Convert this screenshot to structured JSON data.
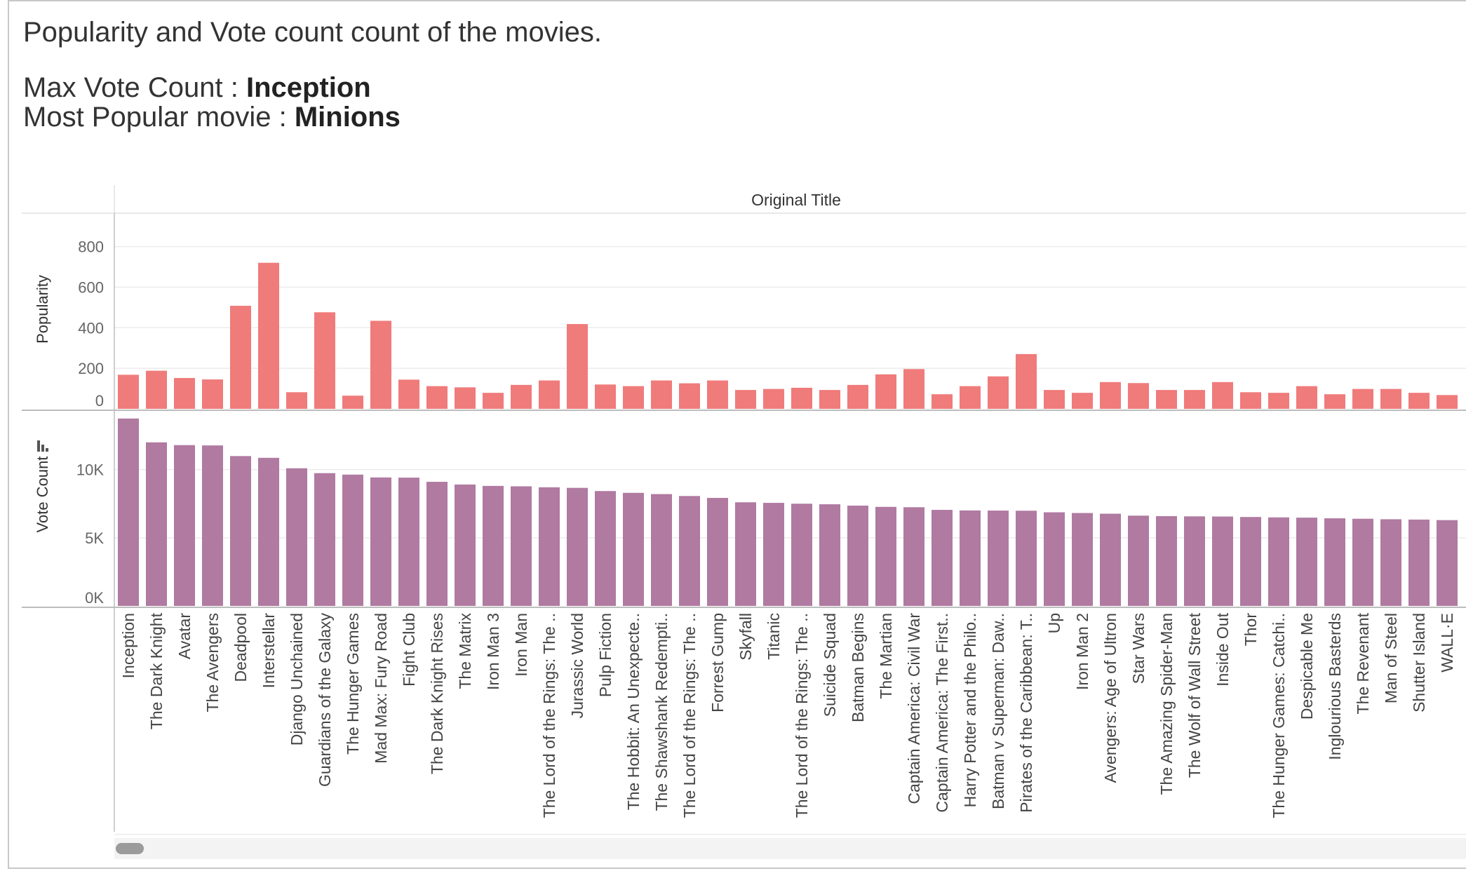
{
  "title": "Popularity and Vote count count of the movies.",
  "max_vote_label": "Max Vote Count : ",
  "max_vote_value": "Inception",
  "most_popular_label": "Most Popular movie : ",
  "most_popular_value": "Minions",
  "chart_data": {
    "type": "bar",
    "column_header": "Original Title",
    "categories": [
      "Inception",
      "The Dark Knight",
      "Avatar",
      "The Avengers",
      "Deadpool",
      "Interstellar",
      "Django Unchained",
      "Guardians of the Galaxy",
      "The Hunger Games",
      "Mad Max: Fury Road",
      "Fight Club",
      "The Dark Knight Rises",
      "The Matrix",
      "Iron Man 3",
      "Iron Man",
      "The Lord of the Rings: The ..",
      "Jurassic World",
      "Pulp Fiction",
      "The Hobbit: An Unexpecte..",
      "The Shawshank Redempti..",
      "The Lord of the Rings: The ..",
      "Forrest Gump",
      "Skyfall",
      "Titanic",
      "The Lord of the Rings: The ..",
      "Suicide Squad",
      "Batman Begins",
      "The Martian",
      "Captain America: Civil War",
      "Captain America: The First..",
      "Harry Potter and the Philo..",
      "Batman v Superman: Daw..",
      "Pirates of the Caribbean: T..",
      "Up",
      "Iron Man 2",
      "Avengers: Age of Ultron",
      "Star Wars",
      "The Amazing Spider-Man",
      "The Wolf of Wall Street",
      "Inside Out",
      "Thor",
      "The Hunger Games: Catchi..",
      "Despicable Me",
      "Inglourious Basterds",
      "The Revenant",
      "Man of Steel",
      "Shutter Island",
      "WALL·E"
    ],
    "panels": [
      {
        "ylabel": "Popularity",
        "color": "#f07b7b",
        "ylim": [
          0,
          840
        ],
        "ticks": [
          0,
          200,
          400,
          600,
          800
        ],
        "tick_labels": [
          "0",
          "200",
          "400",
          "600",
          "800"
        ],
        "values": [
          168,
          188,
          152,
          145,
          508,
          720,
          82,
          476,
          65,
          434,
          144,
          112,
          106,
          79,
          118,
          140,
          418,
          120,
          112,
          140,
          126,
          140,
          93,
          98,
          104,
          93,
          118,
          170,
          196,
          72,
          112,
          160,
          270,
          93,
          79,
          132,
          127,
          93,
          93,
          132,
          82,
          79,
          112,
          72,
          98,
          98,
          79,
          68
        ]
      },
      {
        "ylabel": "Vote Count",
        "color": "#b07aa1",
        "ylim": [
          0,
          14100
        ],
        "ticks": [
          0,
          5000,
          10000
        ],
        "tick_labels": [
          "0K",
          "5K",
          "10K"
        ],
        "values": [
          13752,
          12002,
          11800,
          11776,
          10995,
          10867,
          10099,
          9742,
          9634,
          9427,
          9413,
          9106,
          8907,
          8806,
          8776,
          8705,
          8662,
          8428,
          8297,
          8205,
          8064,
          7927,
          7604,
          7562,
          7500,
          7458,
          7359,
          7268,
          7241,
          7047,
          7006,
          6996,
          6985,
          6870,
          6817,
          6767,
          6624,
          6586,
          6571,
          6560,
          6525,
          6495,
          6478,
          6430,
          6396,
          6359,
          6336,
          6296
        ]
      }
    ]
  }
}
